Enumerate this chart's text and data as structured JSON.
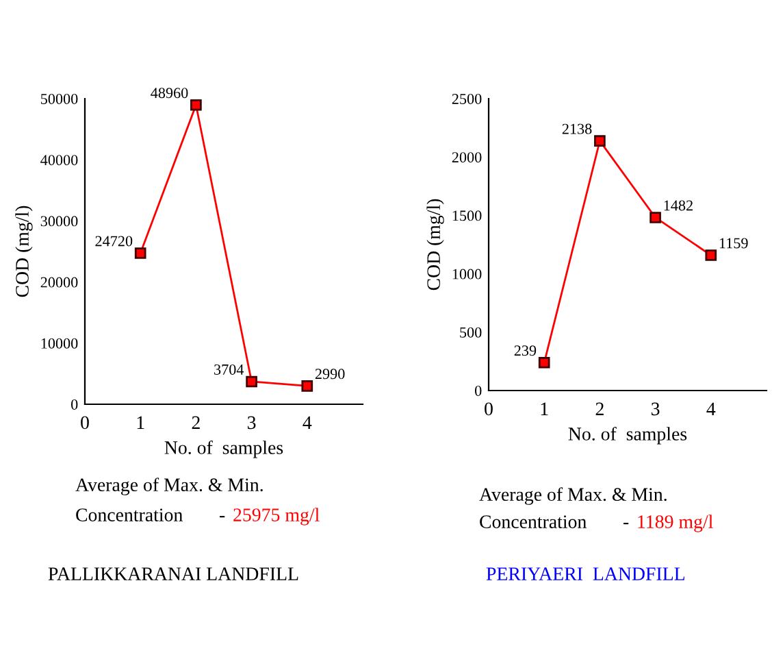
{
  "chart_data": [
    {
      "type": "line",
      "x": [
        1,
        2,
        3,
        4
      ],
      "values": [
        24720,
        48960,
        3704,
        2990
      ],
      "color": "#ff0000",
      "marker": "square",
      "line_style": "solid",
      "data_labels": true,
      "xlabel": "No. of  samples",
      "ylabel": "COD (mg/l)",
      "xlim": [
        0,
        5
      ],
      "xticks": [
        0,
        1,
        2,
        3,
        4
      ],
      "ylim": [
        0,
        50000
      ],
      "yticks": [
        0,
        10000,
        20000,
        30000,
        40000,
        50000
      ],
      "grid": false,
      "legend": false,
      "annotations": [
        "Average of Max. & Min.",
        "Concentration",
        "-",
        "25975 mg/l",
        "PALLIKKARANAI LANDFILL"
      ]
    },
    {
      "type": "line",
      "x": [
        1,
        2,
        3,
        4
      ],
      "values": [
        239,
        2138,
        1482,
        1159
      ],
      "color": "#ff0000",
      "marker": "square",
      "line_style": "solid",
      "data_labels": true,
      "xlabel": "No. of  samples",
      "ylabel": "COD (mg/l)",
      "xlim": [
        0,
        5
      ],
      "xticks": [
        0,
        1,
        2,
        3,
        4
      ],
      "ylim": [
        0,
        2500
      ],
      "yticks": [
        0,
        500,
        1000,
        1500,
        2000,
        2500
      ],
      "grid": false,
      "legend": false,
      "annotations": [
        "Average of Max. & Min.",
        "Concentration",
        "-",
        "1189 mg/l",
        "PERIYAERI  LANDFILL"
      ]
    }
  ]
}
